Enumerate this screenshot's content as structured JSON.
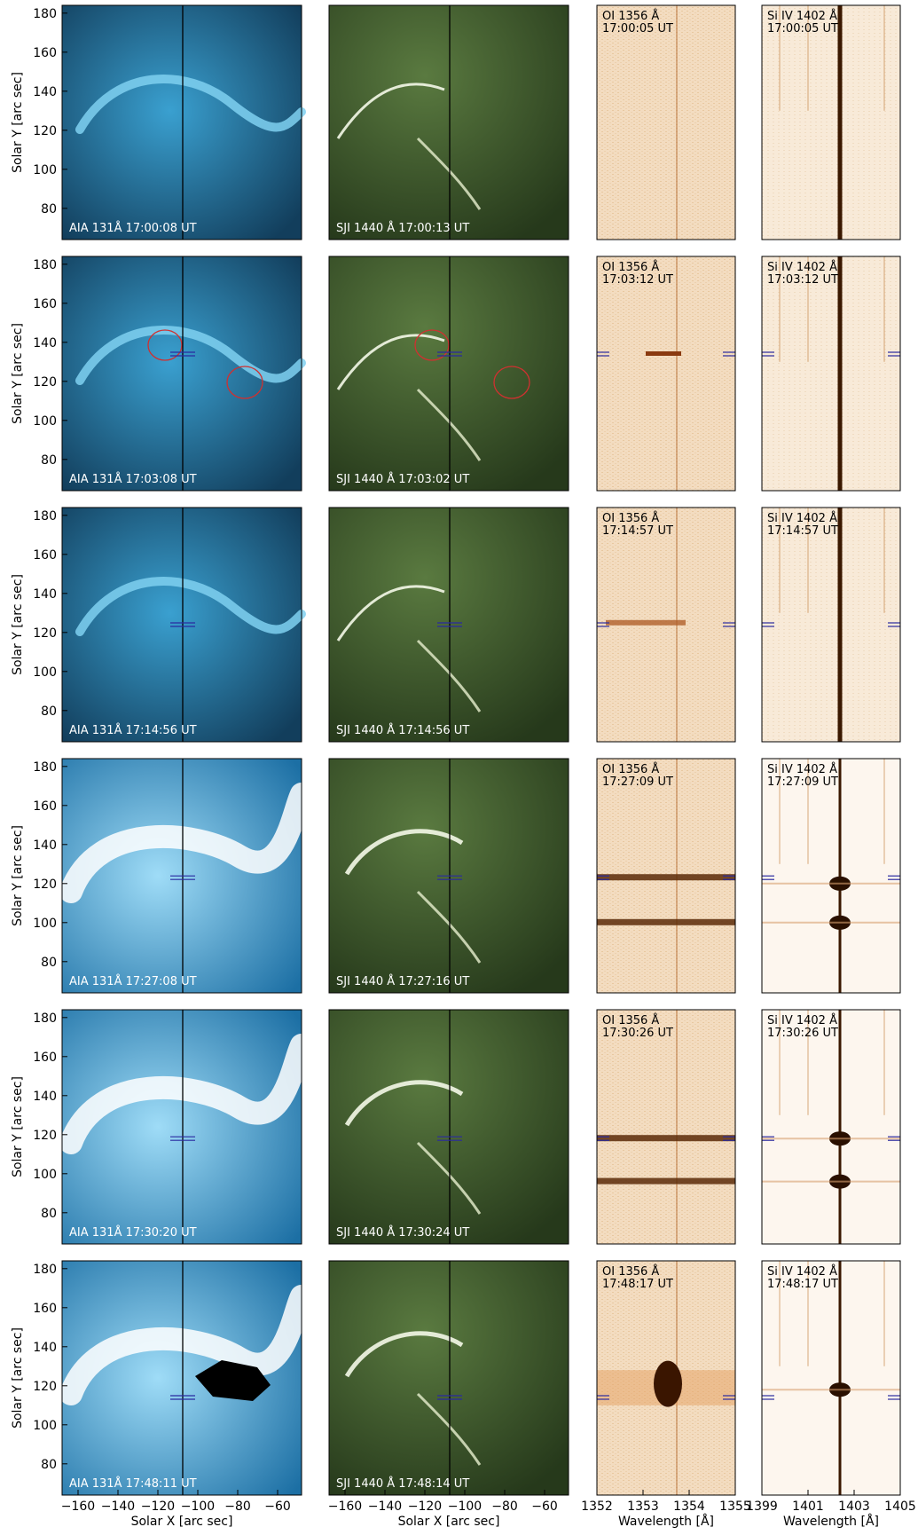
{
  "figure": {
    "y_axis_label": "Solar Y [arc sec]",
    "x_axis_label": "Solar X [arc sec]",
    "wavelength_axis_label": "Wavelength [Å]",
    "y_ticks": [
      "180",
      "160",
      "140",
      "120",
      "100",
      "80"
    ],
    "x_ticks": [
      "−160",
      "−140",
      "−120",
      "−100",
      "−80",
      "−60"
    ],
    "oi_ticks": [
      "1352",
      "1353",
      "1354",
      "1355"
    ],
    "si_ticks": [
      "1399",
      "1401",
      "1403",
      "1405"
    ],
    "colors": {
      "aia": "#1f6f9e",
      "sji": "#3a5a2a",
      "oi": "#f3dcc0",
      "si": "#f6e3cc",
      "contour": "#d03030",
      "marker": "#2a2aa0"
    }
  },
  "rows": [
    {
      "aia_label": "AIA 131Å 17:00:08 UT",
      "sji_label": "SJI 1440 Å 17:00:13 UT",
      "oi_line": "OI 1356 Å",
      "oi_time": "17:00:05 UT",
      "si_line": "Si IV 1402 Å",
      "si_time": "17:00:05 UT"
    },
    {
      "aia_label": "AIA 131Å 17:03:08 UT",
      "sji_label": "SJI 1440 Å 17:03:02 UT",
      "oi_line": "OI 1356 Å",
      "oi_time": "17:03:12 UT",
      "si_line": "Si IV 1402 Å",
      "si_time": "17:03:12 UT"
    },
    {
      "aia_label": "AIA 131Å 17:14:56 UT",
      "sji_label": "SJI 1440 Å 17:14:56 UT",
      "oi_line": "OI 1356 Å",
      "oi_time": "17:14:57 UT",
      "si_line": "Si IV 1402 Å",
      "si_time": "17:14:57 UT"
    },
    {
      "aia_label": "AIA 131Å 17:27:08 UT",
      "sji_label": "SJI 1440 Å 17:27:16 UT",
      "oi_line": "OI 1356 Å",
      "oi_time": "17:27:09 UT",
      "si_line": "Si IV 1402 Å",
      "si_time": "17:27:09 UT"
    },
    {
      "aia_label": "AIA 131Å 17:30:20 UT",
      "sji_label": "SJI 1440 Å 17:30:24 UT",
      "oi_line": "OI 1356 Å",
      "oi_time": "17:30:26 UT",
      "si_line": "Si IV 1402 Å",
      "si_time": "17:30:26 UT"
    },
    {
      "aia_label": "AIA 131Å 17:48:11 UT",
      "sji_label": "SJI 1440 Å 17:48:14 UT",
      "oi_line": "OI 1356 Å",
      "oi_time": "17:48:17 UT",
      "si_line": "Si IV 1402 Å",
      "si_time": "17:48:17 UT"
    }
  ]
}
